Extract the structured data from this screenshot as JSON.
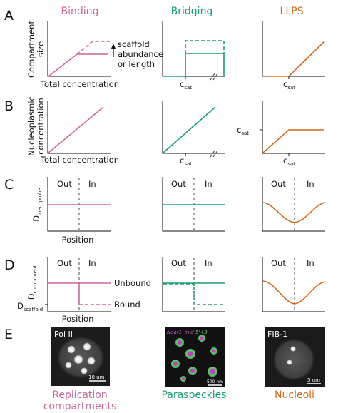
{
  "colors": {
    "binding": "#c9679d",
    "bridging": "#1a9e6e",
    "llps": "#d6681a"
  },
  "columns": {
    "binding": "Binding",
    "bridging": "Bridging",
    "llps": "LLPS"
  },
  "panels": {
    "A": "A",
    "B": "B",
    "C": "C",
    "D": "D",
    "E": "E"
  },
  "A": {
    "ylabel_line1": "Compartment",
    "ylabel_line2": "size",
    "xlabel": "Total concentration",
    "note_line1": "scaffold",
    "note_line2": "abundance",
    "note_line3": "or length",
    "csat": "c",
    "csat_sub": "sat"
  },
  "B": {
    "ylabel_line1": "Nucleoplasmic",
    "ylabel_line2": "concentration",
    "xlabel": "Total concentration",
    "csat": "c",
    "csat_sub": "sat"
  },
  "C": {
    "ylabel": "D",
    "ylabel_sub": "inert probe",
    "xlabel": "Position",
    "out": "Out",
    "in": "In"
  },
  "D": {
    "ylabel": "D",
    "ylabel_sub": "component",
    "dscaffold": "D",
    "dscaffold_sub": "scaffold",
    "xlabel": "Position",
    "out": "Out",
    "in": "In",
    "unbound": "Unbound",
    "bound": "Bound"
  },
  "E": {
    "img1_label": "Pol II",
    "img1_scale": "10 um",
    "img2_label_a": "Neat1_mid",
    "img2_label_b": " 5'+3'",
    "img2_scale": "500 nm",
    "img3_label": "FIB-1",
    "img3_scale": "5 um",
    "caption1_line1": "Replication",
    "caption1_line2": "compartments",
    "caption2": "Paraspeckles",
    "caption3": "Nucleoli"
  }
}
